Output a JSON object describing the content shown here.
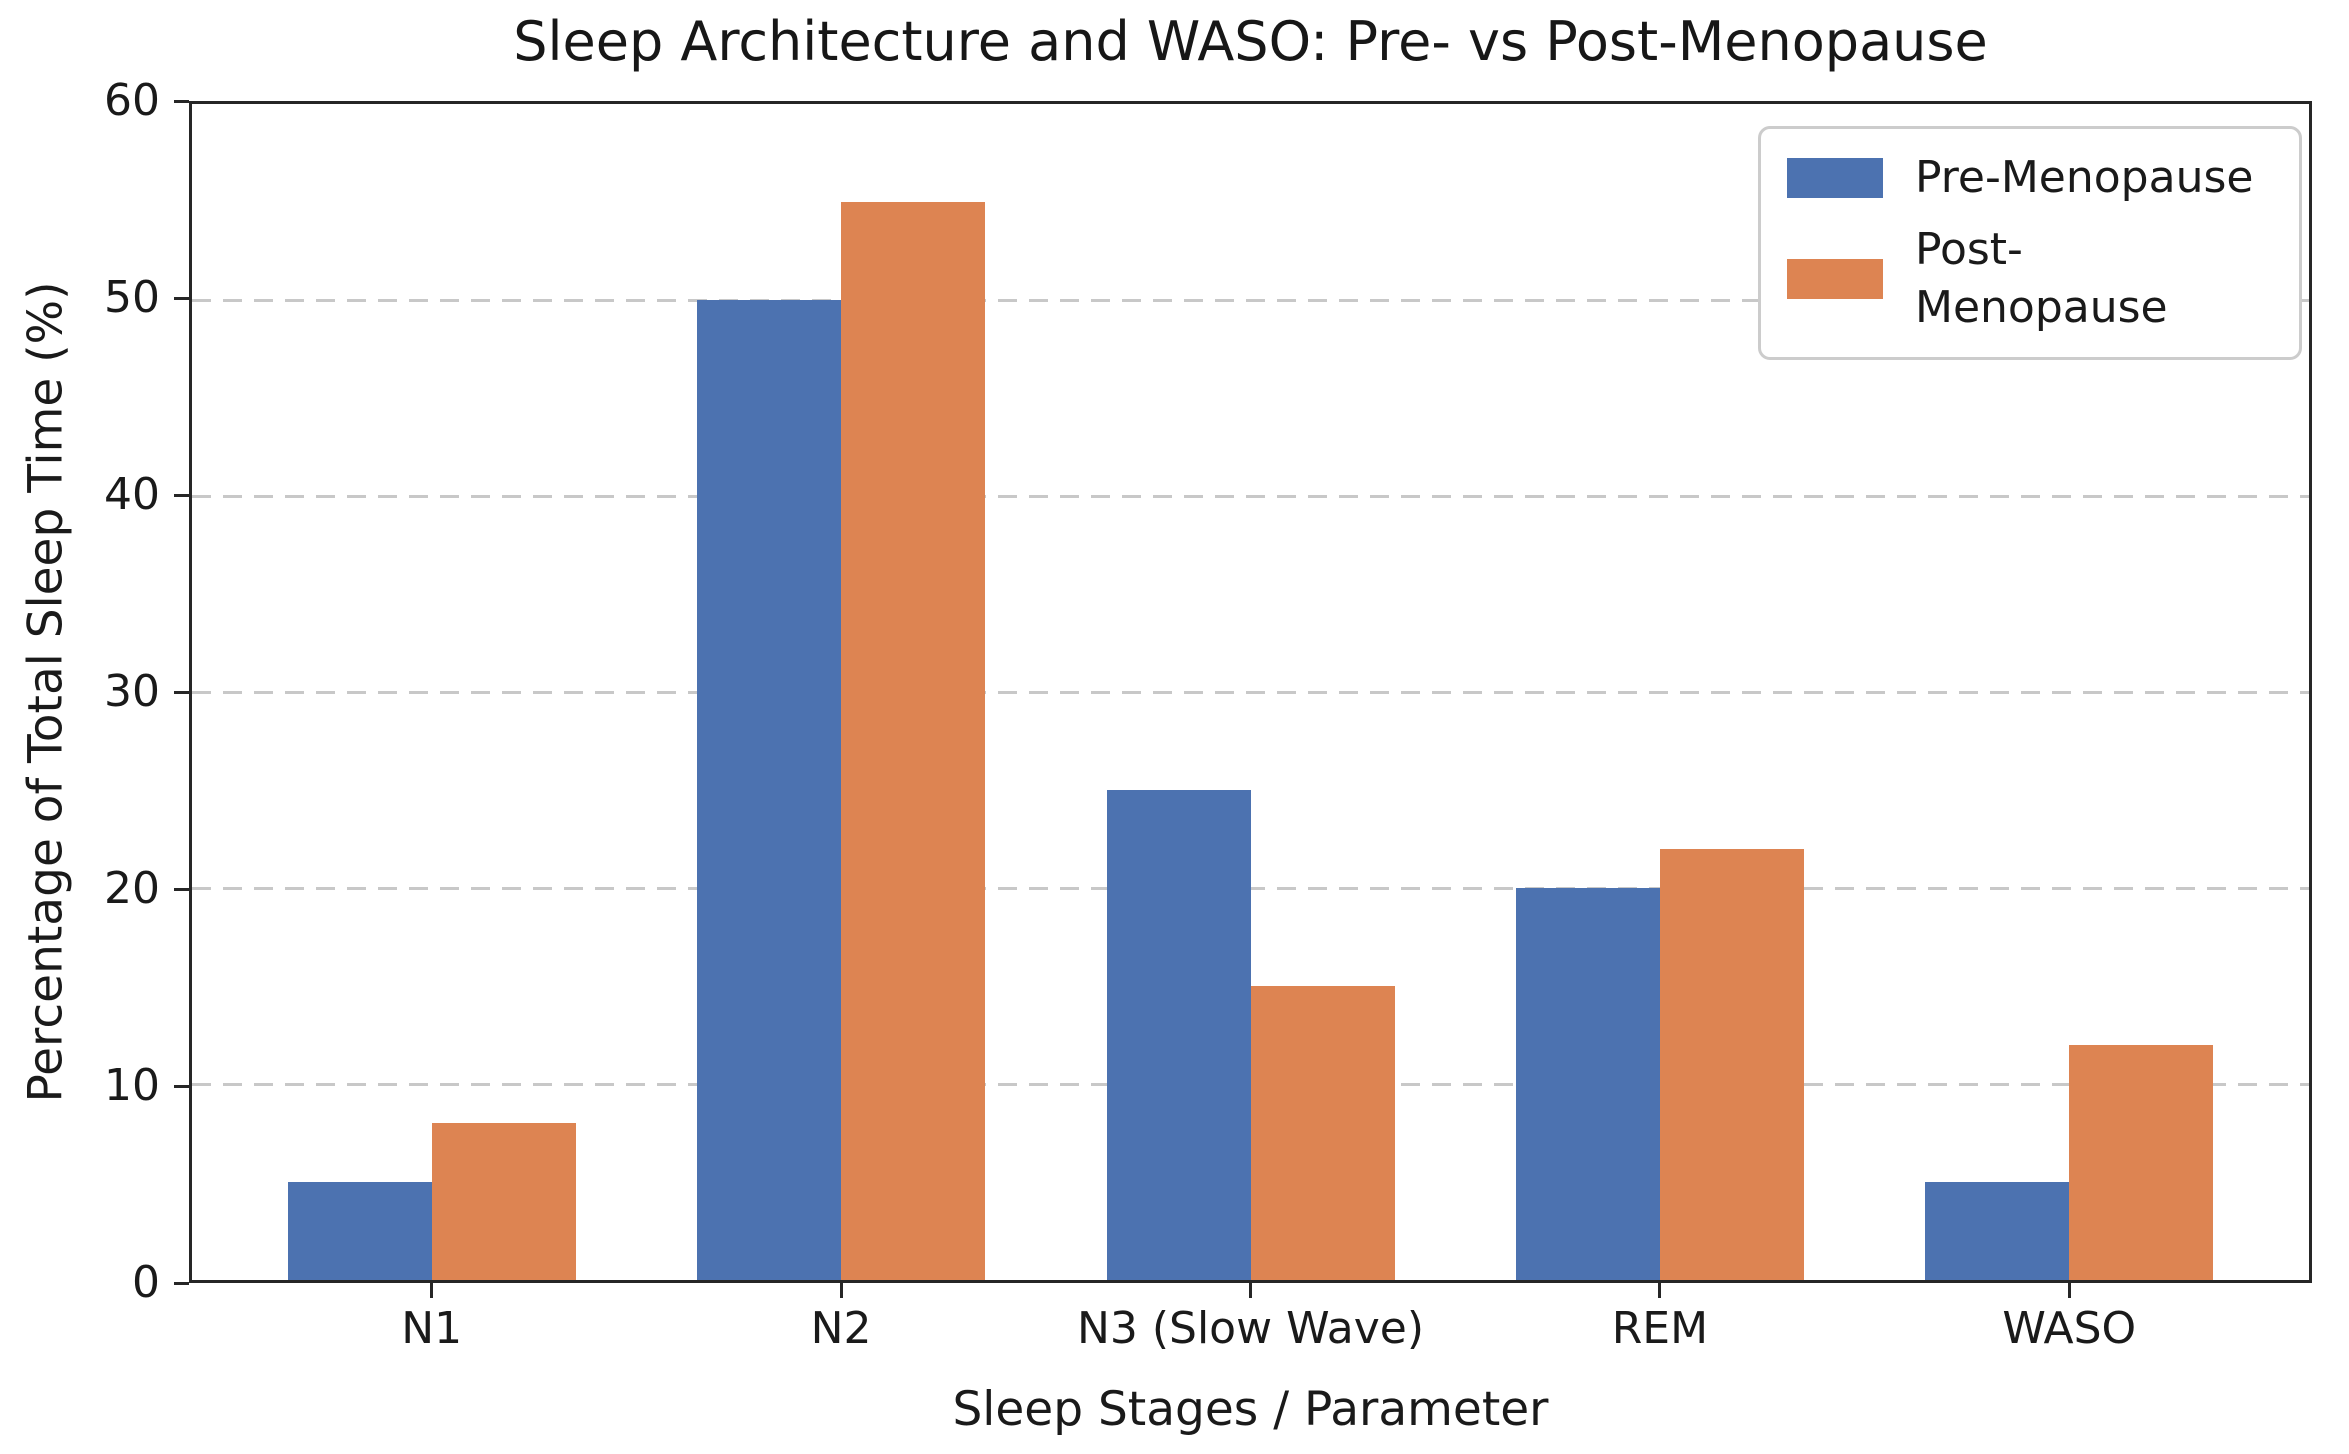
{
  "chart_data": {
    "type": "bar",
    "title": "Sleep Architecture and WASO: Pre- vs Post-Menopause",
    "xlabel": "Sleep Stages / Parameter",
    "ylabel": "Percentage of Total Sleep Time (%)",
    "categories": [
      "N1",
      "N2",
      "N3 (Slow Wave)",
      "REM",
      "WASO"
    ],
    "series": [
      {
        "name": "Pre-Menopause",
        "color": "#4C72B0",
        "values": [
          5,
          50,
          25,
          20,
          5
        ]
      },
      {
        "name": "Post-Menopause",
        "color": "#DD8452",
        "values": [
          8,
          55,
          15,
          22,
          12
        ]
      }
    ],
    "ylim": [
      0,
      60
    ],
    "yticks": [
      0,
      10,
      20,
      30,
      40,
      50,
      60
    ],
    "grid": "horizontal-dashed",
    "legend_position": "upper-right"
  },
  "colors": {
    "pre_menopause": "#4C72B0",
    "post_menopause": "#DD8452",
    "spine": "#262626",
    "gridline": "#c8c8c8",
    "text": "#1a1a1a",
    "legend_border": "#cccccc",
    "background": "#ffffff"
  }
}
